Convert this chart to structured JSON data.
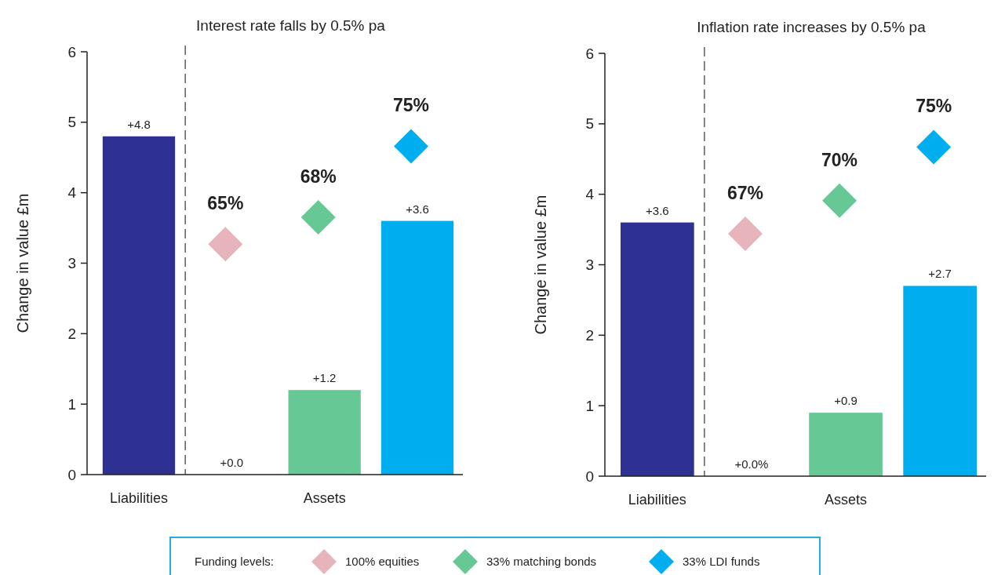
{
  "chart_data": [
    {
      "type": "bar",
      "title": "Interest rate falls by 0.5% pa",
      "ylabel": "Change in value £m",
      "categories": [
        "Liabilities",
        null,
        "Assets",
        null
      ],
      "ylim": [
        0,
        6
      ],
      "yticks": [
        0,
        1,
        2,
        3,
        4,
        5,
        6
      ],
      "grid": false,
      "legend": "bottom",
      "legend_title": "Funding levels:",
      "marker": "diamond",
      "annotations": [
        "65%",
        "68%",
        "75%"
      ],
      "series": [
        {
          "colors": [
            "#2e3192",
            "#e8b4bc",
            "#66c995",
            "#00aeef"
          ],
          "values": [
            4.8,
            0,
            1.2,
            3.6
          ],
          "value_labels": [
            "+4.8",
            "+0.0",
            "+1.2",
            "+3.6"
          ]
        },
        {
          "type": "scatter",
          "name": "100% equities",
          "color": "#e8b4bc",
          "values": [
            null,
            3.27,
            null,
            null
          ]
        },
        {
          "type": "scatter",
          "name": "33% matching bonds",
          "color": "#66c995",
          "values": [
            null,
            null,
            3.65,
            null
          ]
        },
        {
          "type": "scatter",
          "name": "33% LDI funds",
          "color": "#00aeef",
          "values": [
            null,
            null,
            null,
            4.66
          ]
        }
      ]
    },
    {
      "type": "bar",
      "title": "Inflation rate increases by 0.5% pa",
      "ylabel": "Change in value £m",
      "categories": [
        "Liabilities",
        null,
        "Assets",
        null
      ],
      "ylim": [
        0,
        6
      ],
      "yticks": [
        0,
        1,
        2,
        3,
        4,
        5,
        6
      ],
      "grid": false,
      "marker": "diamond",
      "annotations": [
        "67%",
        "70%",
        "75%"
      ],
      "series": [
        {
          "colors": [
            "#2e3192",
            "#e8b4bc",
            "#66c995",
            "#00aeef"
          ],
          "values": [
            3.6,
            0,
            0.9,
            2.7
          ],
          "value_labels": [
            "+3.6",
            "+0.0%",
            "+0.9",
            "+2.7"
          ]
        },
        {
          "type": "scatter",
          "color": "#e8b4bc",
          "values": [
            null,
            3.44,
            null,
            null
          ]
        },
        {
          "type": "scatter",
          "color": "#66c995",
          "values": [
            null,
            null,
            3.91,
            null
          ]
        },
        {
          "type": "scatter",
          "color": "#00aeef",
          "values": [
            null,
            null,
            null,
            4.67
          ]
        }
      ]
    }
  ]
}
